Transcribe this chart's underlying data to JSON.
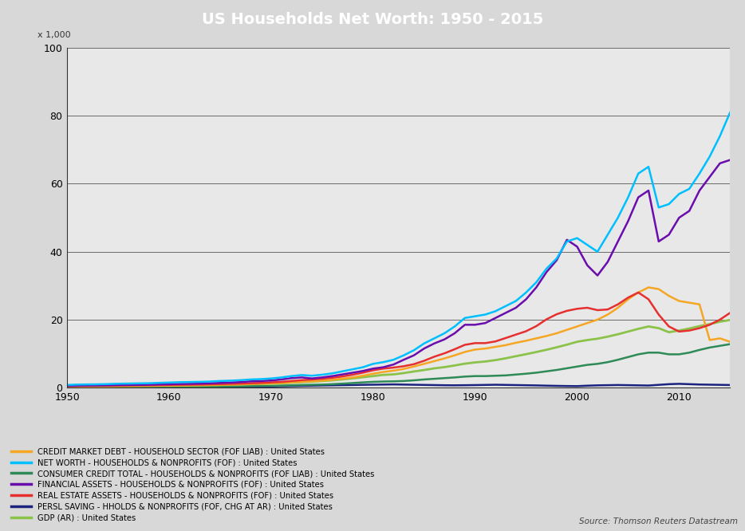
{
  "title": "US Households Net Worth: 1950 - 2015",
  "title_bg_color": "#2e3b6e",
  "title_text_color": "#ffffff",
  "plot_bg_color": "#e8e8e8",
  "fig_bg_color": "#d8d8d8",
  "ylabel": "x 1,000",
  "ylim": [
    0,
    100
  ],
  "xlim": [
    1950,
    2015
  ],
  "yticks": [
    0,
    20,
    40,
    60,
    80,
    100
  ],
  "xticks": [
    1950,
    1960,
    1970,
    1980,
    1990,
    2000,
    2010
  ],
  "source_text": "Source: Thomson Reuters Datastream",
  "series": {
    "credit_market_debt": {
      "label": "CREDIT MARKET DEBT - HOUSEHOLD SECTOR (FOF LIAB) : United States",
      "color": "#f5a623",
      "linewidth": 1.8
    },
    "net_worth": {
      "label": "NET WORTH - HOUSEHOLDS & NONPROFITS (FOF) : United States",
      "color": "#00bfff",
      "linewidth": 1.8
    },
    "consumer_credit": {
      "label": "CONSUMER CREDIT TOTAL - HOUSEHOLDS & NONPROFITS (FOF LIAB) : United States",
      "color": "#2e8b57",
      "linewidth": 1.8
    },
    "financial_assets": {
      "label": "FINANCIAL ASSETS - HOUSEHOLDS & NONPROFITS (FOF) : United States",
      "color": "#6a0dad",
      "linewidth": 1.8
    },
    "real_estate": {
      "label": "REAL ESTATE ASSETS - HOUSEHOLDS & NONPROFITS (FOF) : United States",
      "color": "#e63030",
      "linewidth": 1.8
    },
    "persl_saving": {
      "label": "PERSL SAVING - HHOLDS & NONPROFITS (FOF, CHG AT AR) : United States",
      "color": "#1a237e",
      "linewidth": 1.8
    },
    "gdp": {
      "label": "GDP (AR) : United States",
      "color": "#8bc34a",
      "linewidth": 2.0
    }
  },
  "years": [
    1950,
    1951,
    1952,
    1953,
    1954,
    1955,
    1956,
    1957,
    1958,
    1959,
    1960,
    1961,
    1962,
    1963,
    1964,
    1965,
    1966,
    1967,
    1968,
    1969,
    1970,
    1971,
    1972,
    1973,
    1974,
    1975,
    1976,
    1977,
    1978,
    1979,
    1980,
    1981,
    1982,
    1983,
    1984,
    1985,
    1986,
    1987,
    1988,
    1989,
    1990,
    1991,
    1992,
    1993,
    1994,
    1995,
    1996,
    1997,
    1998,
    1999,
    2000,
    2001,
    2002,
    2003,
    2004,
    2005,
    2006,
    2007,
    2008,
    2009,
    2010,
    2011,
    2012,
    2013,
    2014,
    2015
  ],
  "net_worth_vals": [
    0.8,
    0.9,
    0.95,
    0.98,
    1.05,
    1.15,
    1.2,
    1.25,
    1.3,
    1.4,
    1.5,
    1.6,
    1.65,
    1.7,
    1.8,
    1.95,
    2.05,
    2.2,
    2.4,
    2.5,
    2.7,
    3.0,
    3.4,
    3.7,
    3.5,
    3.8,
    4.2,
    4.8,
    5.4,
    6.0,
    7.0,
    7.5,
    8.2,
    9.5,
    11.0,
    13.0,
    14.5,
    16.0,
    18.0,
    20.5,
    21.0,
    21.5,
    22.5,
    24.0,
    25.5,
    28.0,
    31.0,
    35.0,
    38.0,
    43.0,
    44.0,
    42.0,
    40.0,
    45.0,
    50.0,
    56.0,
    63.0,
    65.0,
    53.0,
    54.0,
    57.0,
    58.5,
    63.0,
    68.0,
    74.0,
    81.0
  ],
  "financial_assets_vals": [
    0.5,
    0.55,
    0.6,
    0.62,
    0.68,
    0.75,
    0.78,
    0.8,
    0.85,
    0.95,
    1.0,
    1.08,
    1.12,
    1.18,
    1.28,
    1.4,
    1.5,
    1.65,
    1.85,
    1.95,
    2.1,
    2.4,
    2.8,
    3.0,
    2.7,
    3.0,
    3.4,
    3.9,
    4.4,
    4.9,
    5.6,
    6.0,
    6.8,
    8.2,
    9.5,
    11.5,
    13.0,
    14.2,
    16.0,
    18.5,
    18.5,
    19.0,
    20.5,
    22.0,
    23.5,
    26.0,
    29.5,
    34.0,
    37.5,
    43.5,
    41.5,
    36.0,
    33.0,
    37.0,
    43.0,
    49.0,
    56.0,
    58.0,
    43.0,
    45.0,
    50.0,
    52.0,
    58.0,
    62.0,
    66.0,
    67.0
  ],
  "credit_market_debt_vals": [
    0.3,
    0.32,
    0.35,
    0.37,
    0.4,
    0.44,
    0.47,
    0.5,
    0.52,
    0.57,
    0.61,
    0.65,
    0.68,
    0.73,
    0.78,
    0.84,
    0.9,
    0.97,
    1.07,
    1.16,
    1.26,
    1.38,
    1.55,
    1.72,
    1.88,
    2.05,
    2.3,
    2.65,
    3.0,
    3.5,
    4.1,
    4.6,
    5.0,
    5.5,
    6.2,
    7.0,
    7.8,
    8.6,
    9.5,
    10.5,
    11.2,
    11.5,
    12.0,
    12.5,
    13.2,
    13.8,
    14.5,
    15.2,
    16.0,
    17.0,
    18.0,
    19.0,
    20.0,
    21.5,
    23.5,
    26.0,
    28.0,
    29.5,
    29.0,
    27.0,
    25.5,
    25.0,
    24.5,
    14.0,
    14.5,
    13.5
  ],
  "real_estate_vals": [
    0.5,
    0.52,
    0.54,
    0.56,
    0.58,
    0.62,
    0.66,
    0.7,
    0.72,
    0.76,
    0.8,
    0.84,
    0.88,
    0.92,
    0.98,
    1.05,
    1.12,
    1.2,
    1.3,
    1.4,
    1.55,
    1.7,
    1.95,
    2.2,
    2.4,
    2.6,
    2.9,
    3.3,
    3.8,
    4.4,
    5.1,
    5.6,
    5.9,
    6.3,
    6.9,
    7.9,
    9.1,
    10.1,
    11.3,
    12.6,
    13.1,
    13.1,
    13.6,
    14.6,
    15.6,
    16.6,
    18.1,
    20.1,
    21.6,
    22.6,
    23.2,
    23.5,
    22.8,
    23.0,
    24.5,
    26.5,
    28.0,
    26.0,
    21.5,
    18.0,
    16.5,
    16.8,
    17.5,
    18.5,
    20.0,
    22.0
  ],
  "consumer_credit_vals": [
    0.1,
    0.11,
    0.12,
    0.13,
    0.14,
    0.16,
    0.17,
    0.18,
    0.19,
    0.21,
    0.22,
    0.24,
    0.26,
    0.28,
    0.31,
    0.35,
    0.38,
    0.41,
    0.46,
    0.5,
    0.54,
    0.6,
    0.68,
    0.78,
    0.85,
    0.9,
    1.02,
    1.18,
    1.35,
    1.55,
    1.7,
    1.8,
    1.85,
    1.95,
    2.15,
    2.4,
    2.6,
    2.8,
    3.0,
    3.25,
    3.4,
    3.4,
    3.5,
    3.6,
    3.85,
    4.1,
    4.4,
    4.8,
    5.2,
    5.7,
    6.2,
    6.7,
    7.0,
    7.5,
    8.2,
    9.0,
    9.8,
    10.3,
    10.3,
    9.8,
    9.8,
    10.3,
    11.1,
    11.8,
    12.3,
    12.8
  ],
  "gdp_vals": [
    0.3,
    0.33,
    0.36,
    0.38,
    0.39,
    0.43,
    0.46,
    0.49,
    0.51,
    0.55,
    0.57,
    0.6,
    0.64,
    0.68,
    0.74,
    0.8,
    0.87,
    0.93,
    1.02,
    1.11,
    1.18,
    1.29,
    1.45,
    1.62,
    1.77,
    1.93,
    2.15,
    2.42,
    2.73,
    3.06,
    3.4,
    3.75,
    3.9,
    4.28,
    4.75,
    5.18,
    5.67,
    6.04,
    6.52,
    7.05,
    7.42,
    7.69,
    8.1,
    8.63,
    9.25,
    9.84,
    10.48,
    11.14,
    11.87,
    12.64,
    13.5,
    14.0,
    14.4,
    15.0,
    15.7,
    16.5,
    17.3,
    18.0,
    17.5,
    16.3,
    16.8,
    17.4,
    18.1,
    18.7,
    19.4,
    19.9
  ],
  "persl_saving_vals": [
    0.08,
    0.09,
    0.1,
    0.1,
    0.1,
    0.11,
    0.12,
    0.13,
    0.13,
    0.14,
    0.15,
    0.16,
    0.17,
    0.18,
    0.2,
    0.22,
    0.24,
    0.25,
    0.28,
    0.3,
    0.34,
    0.4,
    0.46,
    0.53,
    0.58,
    0.63,
    0.68,
    0.73,
    0.78,
    0.83,
    0.87,
    0.91,
    0.95,
    0.9,
    0.85,
    0.8,
    0.75,
    0.7,
    0.68,
    0.71,
    0.75,
    0.8,
    0.85,
    0.8,
    0.75,
    0.7,
    0.65,
    0.58,
    0.52,
    0.47,
    0.44,
    0.57,
    0.67,
    0.72,
    0.77,
    0.72,
    0.67,
    0.62,
    0.82,
    1.02,
    1.12,
    1.02,
    0.92,
    0.87,
    0.82,
    0.77
  ]
}
